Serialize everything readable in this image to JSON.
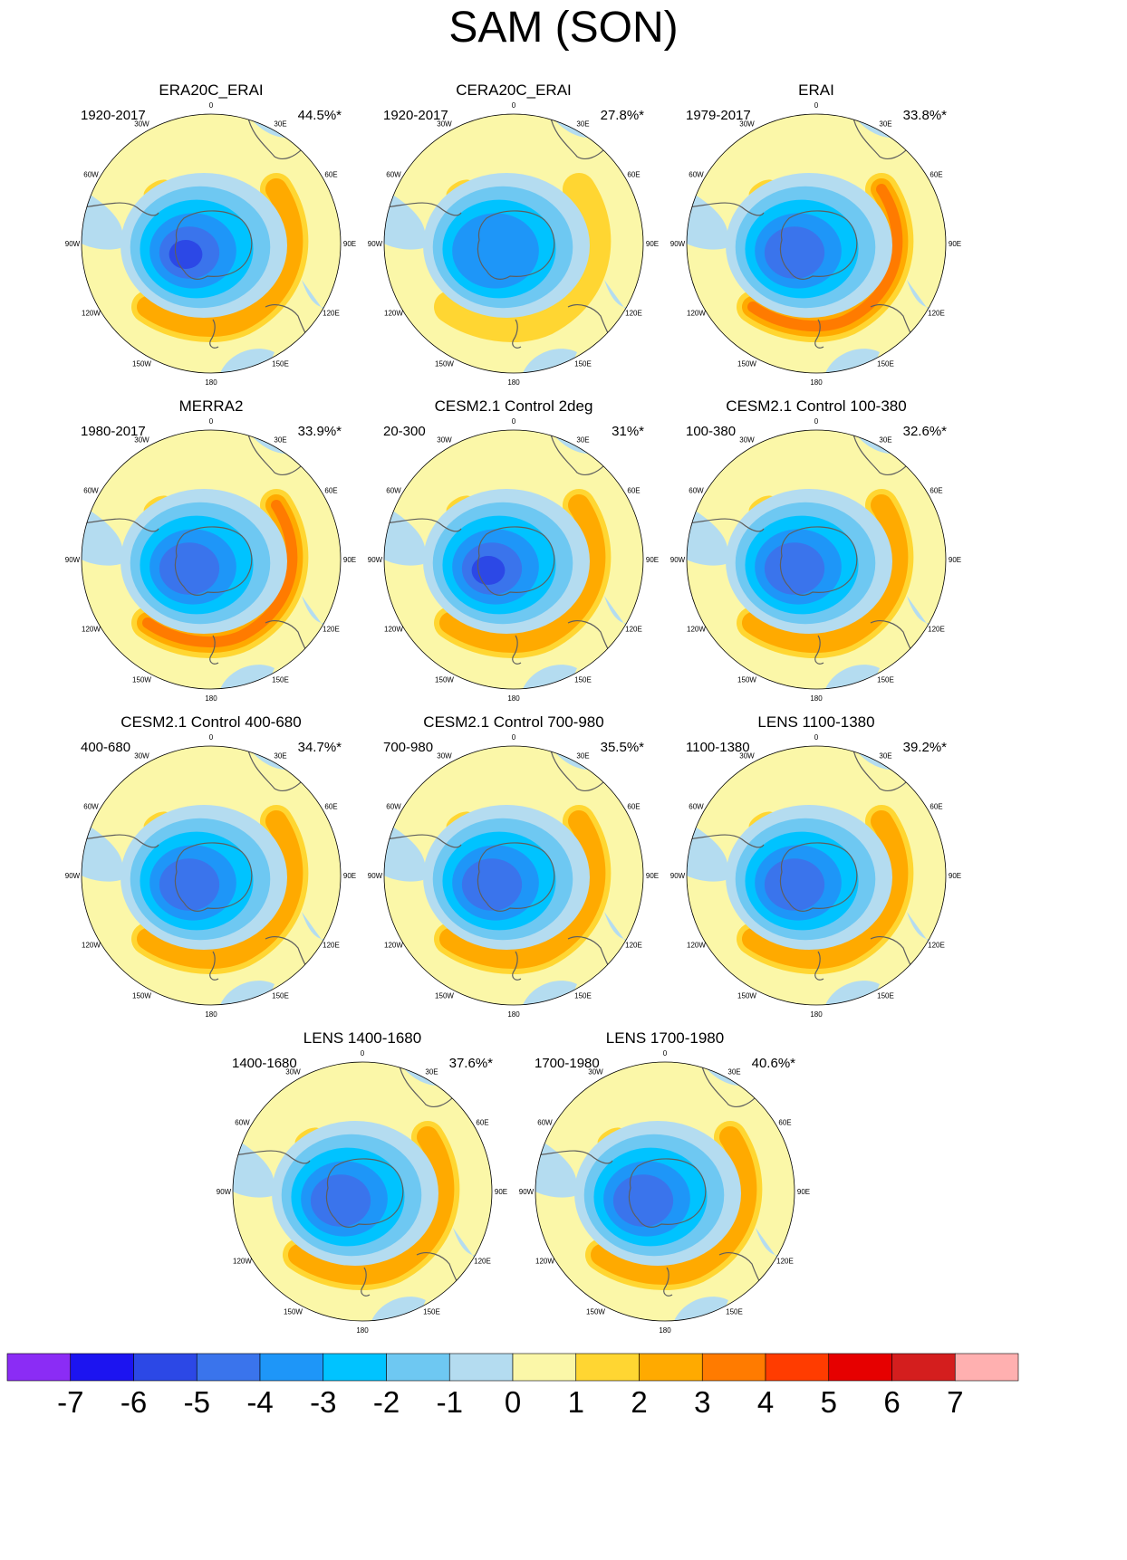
{
  "title": "SAM (SON)",
  "colors": {
    "ocean": "#b4dcf0",
    "land": "#fbf7a8",
    "outline": "#5e5e5e"
  },
  "lon_labels": [
    "0",
    "30E",
    "60E",
    "90E",
    "120E",
    "150E",
    "180",
    "150W",
    "120W",
    "90W",
    "60W",
    "30W"
  ],
  "panels": [
    {
      "title": "ERA20C_ERAI",
      "period": "1920-2017",
      "variance": "44.5%*",
      "max_neg": 6,
      "max_pos": 2
    },
    {
      "title": "CERA20C_ERAI",
      "period": "1920-2017",
      "variance": "27.8%*",
      "max_neg": 4,
      "max_pos": 1
    },
    {
      "title": "ERAI",
      "period": "1979-2017",
      "variance": "33.8%*",
      "max_neg": 5,
      "max_pos": 3
    },
    {
      "title": "MERRA2",
      "period": "1980-2017",
      "variance": "33.9%*",
      "max_neg": 5,
      "max_pos": 3
    },
    {
      "title": "CESM2.1 Control 2deg",
      "period": "20-300",
      "variance": "31%*",
      "max_neg": 6,
      "max_pos": 2
    },
    {
      "title": "CESM2.1 Control 100-380",
      "period": "100-380",
      "variance": "32.6%*",
      "max_neg": 5,
      "max_pos": 2
    },
    {
      "title": "CESM2.1 Control 400-680",
      "period": "400-680",
      "variance": "34.7%*",
      "max_neg": 5,
      "max_pos": 2
    },
    {
      "title": "CESM2.1 Control 700-980",
      "period": "700-980",
      "variance": "35.5%*",
      "max_neg": 5,
      "max_pos": 2
    },
    {
      "title": "LENS 1100-1380",
      "period": "1100-1380",
      "variance": "39.2%*",
      "max_neg": 5,
      "max_pos": 2
    },
    {
      "title": "LENS 1400-1680",
      "period": "1400-1680",
      "variance": "37.6%*",
      "max_neg": 5,
      "max_pos": 2
    },
    {
      "title": "LENS 1700-1980",
      "period": "1700-1980",
      "variance": "40.6%*",
      "max_neg": 5,
      "max_pos": 2
    }
  ],
  "colorbar": {
    "colors": [
      "#8b2cf5",
      "#1c14f0",
      "#2c48e6",
      "#3a74ec",
      "#1e96f8",
      "#00c3ff",
      "#6ec8f2",
      "#b4dcf0",
      "#fbf7a8",
      "#ffd632",
      "#ffaa00",
      "#ff7b00",
      "#ff3c00",
      "#e60000",
      "#d41e1e",
      "#ffb0b0"
    ],
    "labels": [
      "-7",
      "-6",
      "-5",
      "-4",
      "-3",
      "-2",
      "-1",
      "0",
      "1",
      "2",
      "3",
      "4",
      "5",
      "6",
      "7"
    ]
  }
}
